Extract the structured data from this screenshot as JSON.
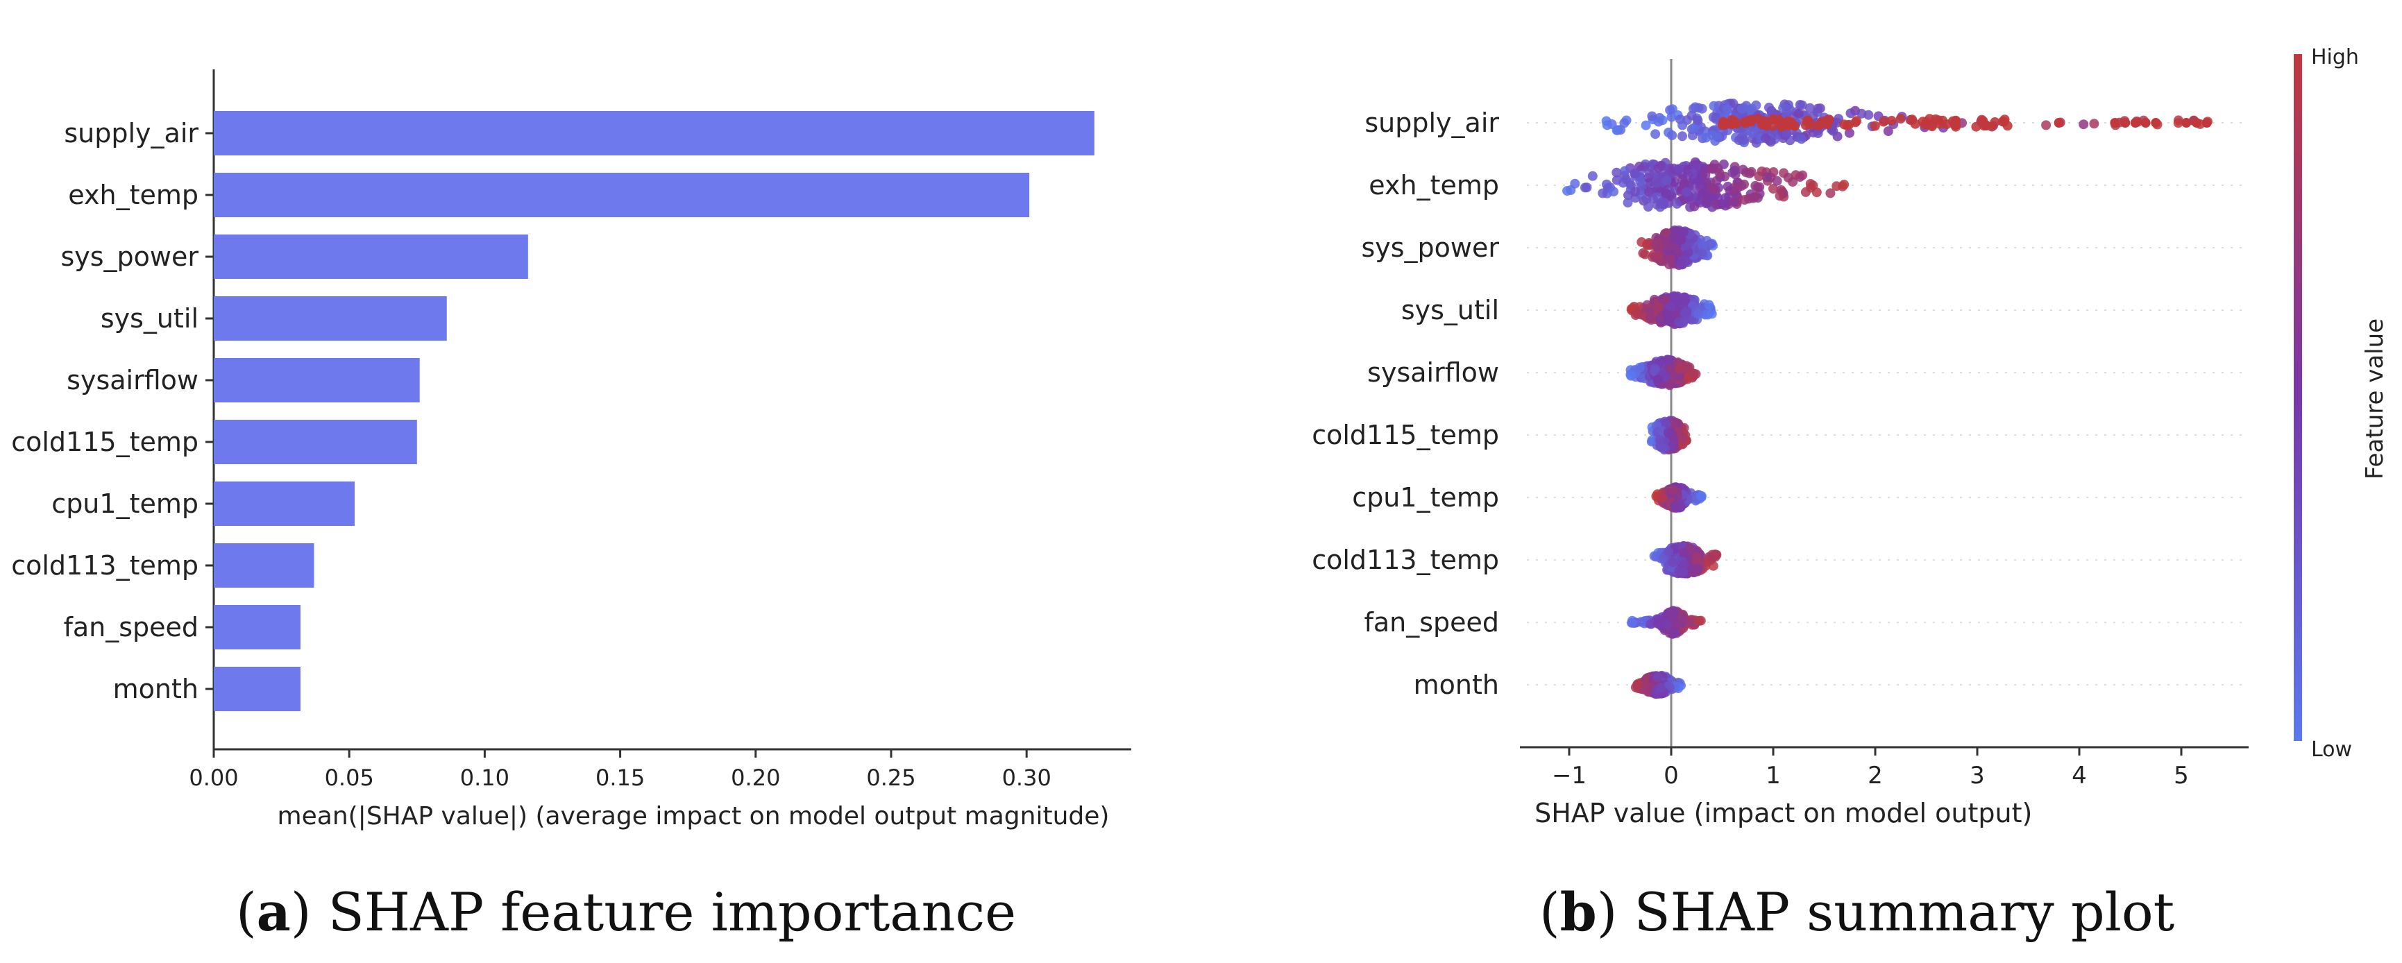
{
  "colors": {
    "bar": "#6d79ec",
    "low": "#5a78f0",
    "high": "#c0383c",
    "axis": "#333333",
    "text": "#222222",
    "grid": "#dddddd"
  },
  "captions": {
    "a": {
      "letter": "a",
      "text": "SHAP feature importance"
    },
    "b": {
      "letter": "b",
      "text": "SHAP summary plot"
    }
  },
  "chart_data": [
    {
      "type": "bar",
      "orientation": "horizontal",
      "title": "",
      "categories": [
        "supply_air",
        "exh_temp",
        "sys_power",
        "sys_util",
        "sysairflow",
        "cold115_temp",
        "cpu1_temp",
        "cold113_temp",
        "fan_speed",
        "month"
      ],
      "values": [
        0.325,
        0.301,
        0.116,
        0.086,
        0.076,
        0.075,
        0.052,
        0.037,
        0.032,
        0.032
      ],
      "xlabel": "mean(|SHAP value|) (average impact on model output magnitude)",
      "ylabel": "",
      "xlim": [
        0,
        0.34
      ],
      "xticks": [
        0.0,
        0.05,
        0.1,
        0.15,
        0.2,
        0.25,
        0.3
      ],
      "xtick_labels": [
        "0.00",
        "0.05",
        "0.10",
        "0.15",
        "0.20",
        "0.25",
        "0.30"
      ]
    },
    {
      "type": "scatter",
      "subtype": "beeswarm",
      "title": "",
      "categories": [
        "supply_air",
        "exh_temp",
        "sys_power",
        "sys_util",
        "sysairflow",
        "cold115_temp",
        "cpu1_temp",
        "cold113_temp",
        "fan_speed",
        "month"
      ],
      "features": [
        {
          "name": "supply_air",
          "min": -0.65,
          "max": 5.3,
          "spread": 0.85,
          "bulk": [
            -0.5,
            2.2
          ]
        },
        {
          "name": "exh_temp",
          "min": -1.2,
          "max": 1.75,
          "spread": 1.0,
          "bulk": [
            -1.0,
            1.3
          ]
        },
        {
          "name": "sys_power",
          "min": -0.3,
          "max": 0.45,
          "spread": 0.75,
          "bulk": [
            -0.25,
            0.35
          ]
        },
        {
          "name": "sys_util",
          "min": -0.4,
          "max": 0.45,
          "spread": 0.6,
          "bulk": [
            -0.3,
            0.35
          ]
        },
        {
          "name": "sysairflow",
          "min": -0.4,
          "max": 0.25,
          "spread": 0.55,
          "bulk": [
            -0.3,
            0.2
          ]
        },
        {
          "name": "cold115_temp",
          "min": -0.2,
          "max": 0.15,
          "spread": 0.65,
          "bulk": [
            -0.2,
            0.15
          ]
        },
        {
          "name": "cpu1_temp",
          "min": -0.15,
          "max": 0.3,
          "spread": 0.45,
          "bulk": [
            -0.1,
            0.2
          ]
        },
        {
          "name": "cold113_temp",
          "min": -0.2,
          "max": 0.45,
          "spread": 0.6,
          "bulk": [
            -0.15,
            0.4
          ]
        },
        {
          "name": "fan_speed",
          "min": -0.4,
          "max": 0.3,
          "spread": 0.5,
          "bulk": [
            -0.1,
            0.15
          ]
        },
        {
          "name": "month",
          "min": -0.35,
          "max": 0.1,
          "spread": 0.4,
          "bulk": [
            -0.3,
            0.05
          ]
        }
      ],
      "xlabel": "SHAP value (impact on model output)",
      "ylabel": "",
      "xlim": [
        -1.5,
        5.7
      ],
      "xticks": [
        -1,
        0,
        1,
        2,
        3,
        4,
        5
      ],
      "xtick_labels": [
        "−1",
        "0",
        "1",
        "2",
        "3",
        "4",
        "5"
      ],
      "colorbar": {
        "label": "Feature value",
        "high": "High",
        "low": "Low"
      }
    }
  ]
}
